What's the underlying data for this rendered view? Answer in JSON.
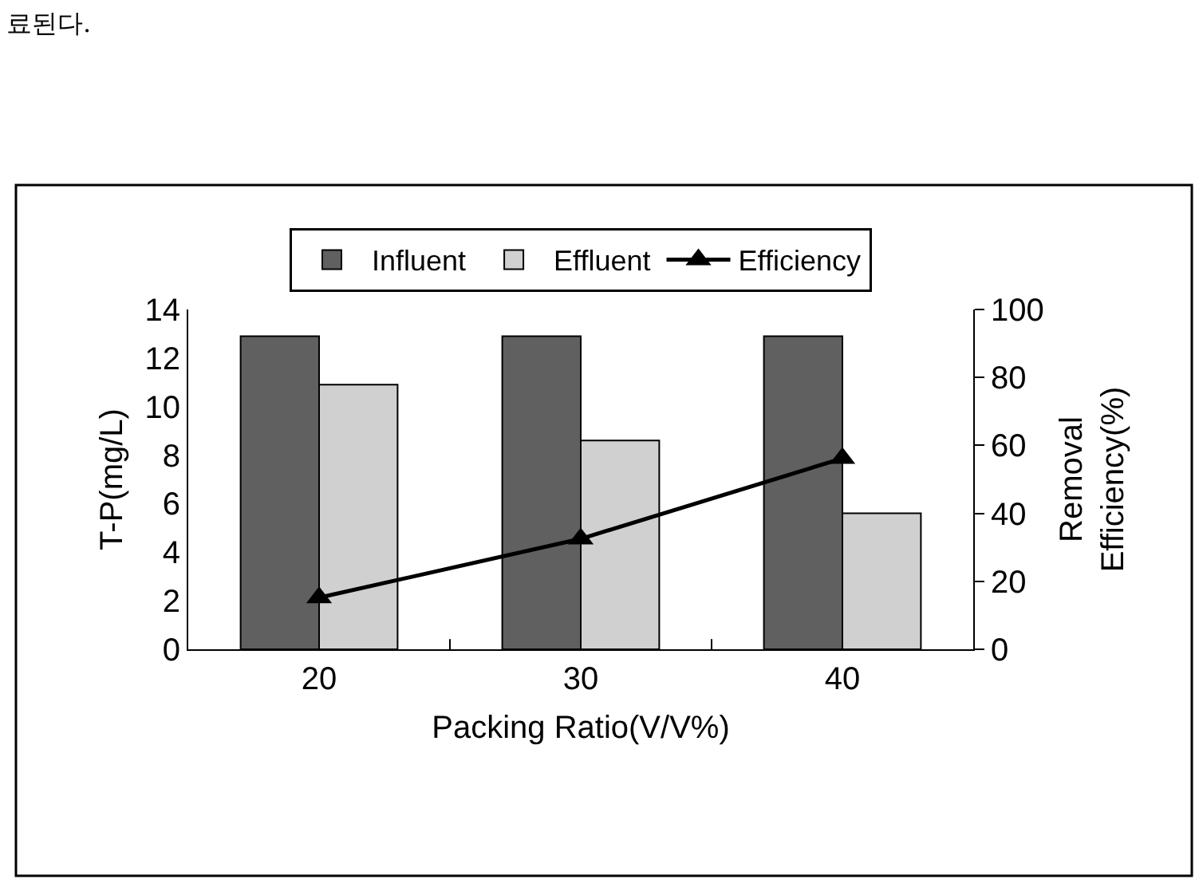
{
  "chart_data": {
    "type": "bar",
    "annotations": [
      "료된다."
    ],
    "xlabel": "Packing Ratio(V/V%)",
    "ylabel": "T-P(mg/L)",
    "y2label": "Removal\nEfficiency(%)",
    "categories": [
      "20",
      "30",
      "40"
    ],
    "series": [
      {
        "name": "Influent",
        "color": "#606060",
        "values": [
          12.9,
          12.9,
          12.9
        ]
      },
      {
        "name": "Effluent",
        "color": "#d0d0d0",
        "values": [
          10.9,
          8.6,
          5.6
        ]
      },
      {
        "name": "Efficiency",
        "type": "line",
        "axis": "y2",
        "color": "#000000",
        "marker": "triangle",
        "values": [
          15.2,
          32.5,
          56.2
        ]
      }
    ],
    "ylim": [
      0,
      14
    ],
    "yticks": [
      0,
      2,
      4,
      6,
      8,
      10,
      12,
      14
    ],
    "y2lim": [
      0,
      100
    ],
    "y2ticks": [
      0,
      20,
      40,
      60,
      80,
      100
    ],
    "legend": "top"
  }
}
